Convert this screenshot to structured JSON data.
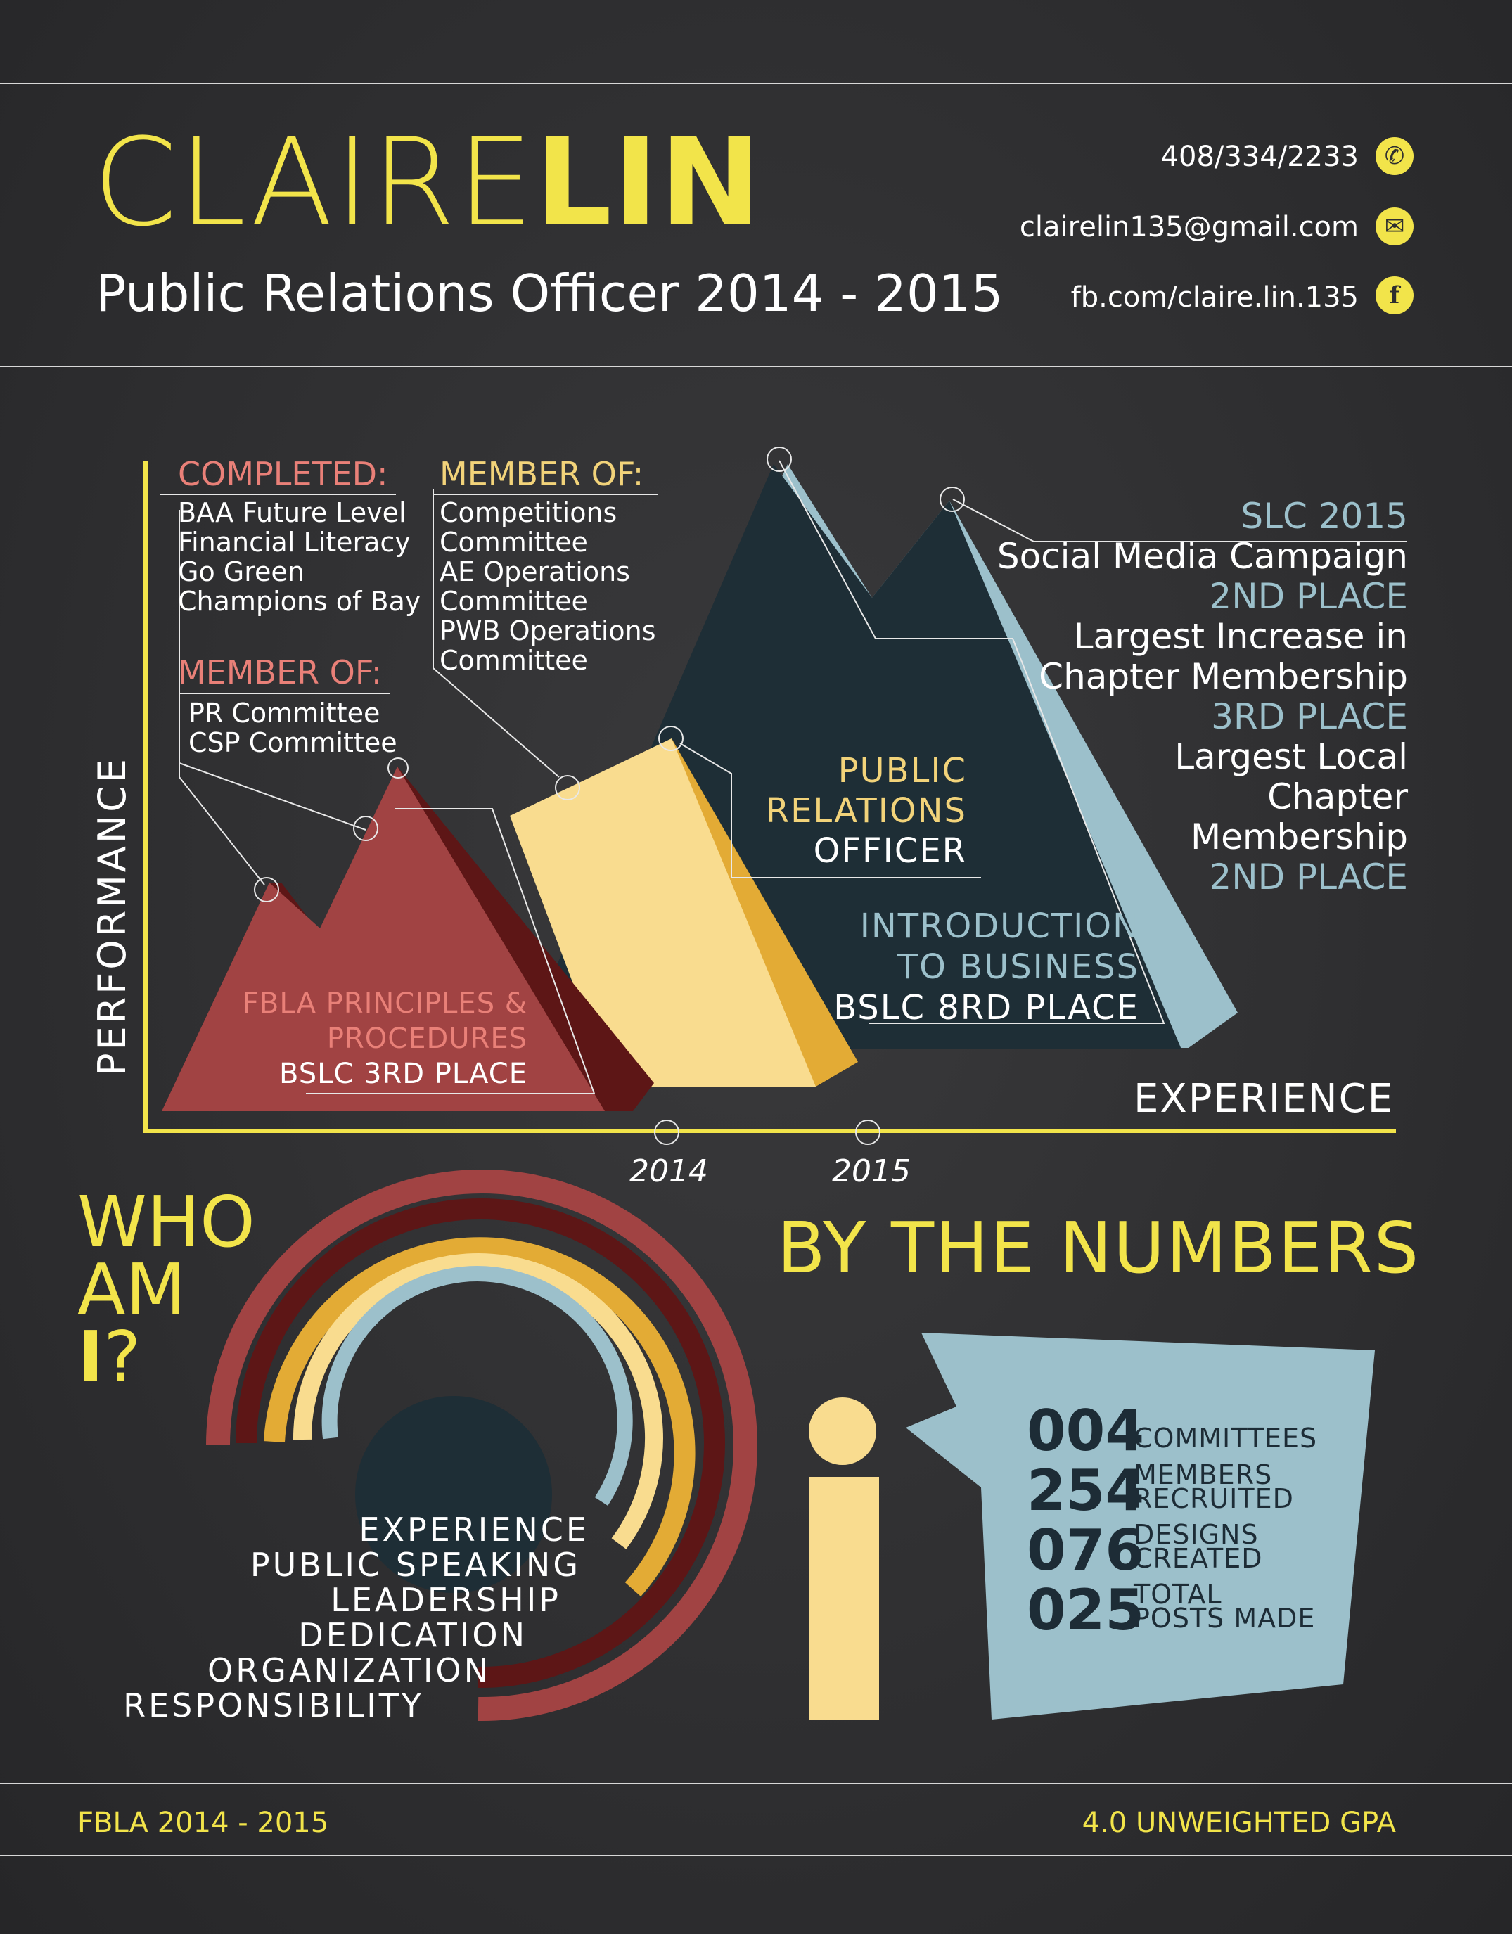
{
  "header": {
    "first_name": "CLAIRE",
    "last_name": "LIN",
    "subtitle": "Public Relations Officer 2014 - 2015",
    "phone": "408/334/2233",
    "email": "clairelin135@gmail.com",
    "facebook": "fb.com/claire.lin.135"
  },
  "graph": {
    "y_axis_label": "PERFORMANCE",
    "x_axis_label": "EXPERIENCE",
    "year_ticks": [
      "2014",
      "2015"
    ],
    "completed": {
      "heading": "COMPLETED:",
      "items": [
        "BAA Future Level",
        "Financial Literacy",
        "Go Green",
        "Champions of Bay"
      ]
    },
    "member_of_1": {
      "heading": "MEMBER OF:",
      "items": [
        "PR Committee",
        "CSP Committee"
      ]
    },
    "member_of_2": {
      "heading": "MEMBER OF:",
      "items": [
        "Competitions",
        "Committee",
        "AE Operations",
        "Committee",
        "PWB Operations",
        "Committee"
      ]
    },
    "fbla": {
      "line1": "FBLA PRINCIPLES &",
      "line2": "PROCEDURES",
      "result": "BSLC 3RD PLACE"
    },
    "pr_officer": {
      "line1": "PUBLIC",
      "line2": "RELATIONS",
      "line3": "OFFICER"
    },
    "intro_business": {
      "line1": "INTRODUCTION",
      "line2": "TO BUSINESS",
      "result": "BSLC 8RD PLACE"
    },
    "slc": {
      "title": "SLC 2015",
      "l1": "Social Media Campaign",
      "p1": "2ND PLACE",
      "l2": "Largest Increase in",
      "l3": "Chapter Membership",
      "p2": "3RD PLACE",
      "l4": "Largest Local",
      "l5": "Chapter",
      "l6": "Membership",
      "p3": "2ND PLACE"
    }
  },
  "who_am_i": {
    "line1": "WHO",
    "line2": "AM",
    "line3_bold": "I",
    "line3_rest": "?",
    "traits": [
      "EXPERIENCE",
      "PUBLIC SPEAKING",
      "LEADERSHIP",
      "DEDICATION",
      "ORGANIZATION",
      "RESPONSIBILITY"
    ]
  },
  "numbers": {
    "title": "BY THE NUMBERS",
    "stats": [
      {
        "value": "004",
        "label1": "COMMITTEES",
        "label2": ""
      },
      {
        "value": "254",
        "label1": "MEMBERS",
        "label2": "RECRUITED"
      },
      {
        "value": "076",
        "label1": "DESIGNS",
        "label2": "CREATED"
      },
      {
        "value": "025",
        "label1": "TOTAL",
        "label2": "POSTS MADE"
      }
    ]
  },
  "footer": {
    "left": "FBLA 2014 - 2015",
    "right": "4.0 UNWEIGHTED GPA"
  },
  "colors": {
    "accent_yellow": "#f2e44a",
    "red": "#a14343",
    "gold": "#f2d37a",
    "navy": "#1e2e36",
    "light_blue": "#9cc0cb"
  }
}
